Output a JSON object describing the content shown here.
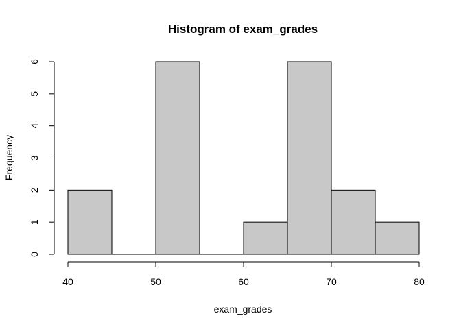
{
  "chart_data": {
    "type": "bar",
    "title": "Histogram of exam_grades",
    "xlabel": "exam_grades",
    "ylabel": "Frequency",
    "bins": [
      {
        "start": 40,
        "end": 45,
        "count": 2
      },
      {
        "start": 45,
        "end": 50,
        "count": 0
      },
      {
        "start": 50,
        "end": 55,
        "count": 6
      },
      {
        "start": 55,
        "end": 60,
        "count": 0
      },
      {
        "start": 60,
        "end": 65,
        "count": 1
      },
      {
        "start": 65,
        "end": 70,
        "count": 6
      },
      {
        "start": 70,
        "end": 75,
        "count": 2
      },
      {
        "start": 75,
        "end": 80,
        "count": 1
      }
    ],
    "xlim": [
      40,
      80
    ],
    "ylim": [
      0,
      6
    ],
    "xticks": [
      40,
      50,
      60,
      70,
      80
    ],
    "yticks": [
      0,
      1,
      2,
      3,
      4,
      5,
      6
    ],
    "grid": false,
    "legend": "none",
    "bar_color": "#c8c8c8",
    "edge_color": "#000000"
  }
}
